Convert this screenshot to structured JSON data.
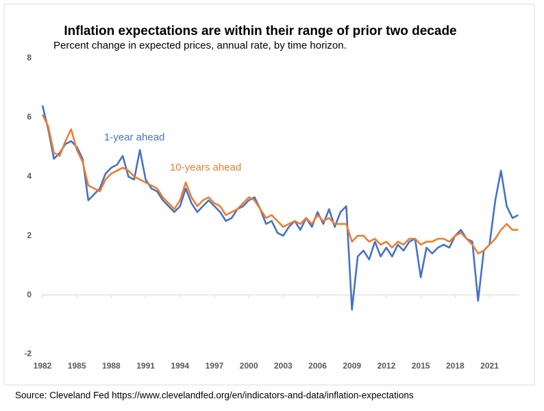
{
  "chart_data": {
    "type": "line",
    "title": "Inflation expectations are within their range of prior two decade",
    "subtitle": "Percent change in expected prices, annual rate, by time horizon.",
    "source": "Source: Cleveland Fed https://www.clevelandfed.org/en/indicators-and-data/inflation-expectations",
    "x": [
      1982,
      1982.5,
      1983,
      1983.5,
      1984,
      1984.5,
      1985,
      1985.5,
      1986,
      1986.5,
      1987,
      1987.5,
      1988,
      1988.5,
      1989,
      1989.5,
      1990,
      1990.5,
      1991,
      1991.5,
      1992,
      1992.5,
      1993,
      1993.5,
      1994,
      1994.5,
      1995,
      1995.5,
      1996,
      1996.5,
      1997,
      1997.5,
      1998,
      1998.5,
      1999,
      1999.5,
      2000,
      2000.5,
      2001,
      2001.5,
      2002,
      2002.5,
      2003,
      2003.5,
      2004,
      2004.5,
      2005,
      2005.5,
      2006,
      2006.5,
      2007,
      2007.5,
      2008,
      2008.5,
      2009,
      2009.5,
      2010,
      2010.5,
      2011,
      2011.5,
      2012,
      2012.5,
      2013,
      2013.5,
      2014,
      2014.5,
      2015,
      2015.5,
      2016,
      2016.5,
      2017,
      2017.5,
      2018,
      2018.5,
      2019,
      2019.5,
      2020,
      2020.5,
      2021,
      2021.5,
      2022,
      2022.5,
      2023,
      2023.5
    ],
    "series": [
      {
        "name": "1-year ahead",
        "color": "#4472c4",
        "values": [
          6.4,
          5.6,
          4.6,
          4.8,
          5.1,
          5.2,
          5.0,
          4.6,
          3.2,
          3.4,
          3.6,
          4.1,
          4.3,
          4.4,
          4.7,
          4.0,
          3.9,
          4.9,
          3.9,
          3.6,
          3.5,
          3.2,
          3.0,
          2.8,
          3.0,
          3.6,
          3.1,
          2.8,
          3.0,
          3.2,
          3.0,
          2.8,
          2.5,
          2.6,
          2.9,
          3.0,
          3.2,
          3.3,
          2.9,
          2.4,
          2.5,
          2.1,
          2.0,
          2.3,
          2.5,
          2.2,
          2.6,
          2.3,
          2.8,
          2.4,
          2.9,
          2.3,
          2.8,
          3.0,
          -0.5,
          1.3,
          1.5,
          1.2,
          1.8,
          1.3,
          1.6,
          1.3,
          1.7,
          1.5,
          1.8,
          1.9,
          0.6,
          1.6,
          1.4,
          1.6,
          1.7,
          1.6,
          2.0,
          2.2,
          1.9,
          1.8,
          -0.2,
          1.5,
          1.7,
          3.2,
          4.2,
          3.0,
          2.6,
          2.7
        ]
      },
      {
        "name": "10-years ahead",
        "color": "#ed7d31",
        "values": [
          6.1,
          5.7,
          4.8,
          4.7,
          5.2,
          5.6,
          4.9,
          4.5,
          3.7,
          3.6,
          3.5,
          3.9,
          4.1,
          4.2,
          4.3,
          4.2,
          4.0,
          3.9,
          3.8,
          3.7,
          3.6,
          3.3,
          3.1,
          2.9,
          3.2,
          3.8,
          3.3,
          3.0,
          3.2,
          3.3,
          3.1,
          3.0,
          2.7,
          2.8,
          2.9,
          3.1,
          3.3,
          3.2,
          2.9,
          2.6,
          2.7,
          2.5,
          2.3,
          2.4,
          2.5,
          2.4,
          2.6,
          2.4,
          2.7,
          2.5,
          2.6,
          2.4,
          2.4,
          2.4,
          1.8,
          2.0,
          2.0,
          1.8,
          1.9,
          1.7,
          1.8,
          1.6,
          1.8,
          1.7,
          1.9,
          1.9,
          1.7,
          1.8,
          1.8,
          1.9,
          1.9,
          1.8,
          2.0,
          2.1,
          1.9,
          1.7,
          1.4,
          1.5,
          1.7,
          1.9,
          2.2,
          2.4,
          2.2,
          2.2
        ]
      }
    ],
    "xlim": [
      1982,
      2023.6
    ],
    "xticks": [
      1982,
      1985,
      1988,
      1991,
      1994,
      1997,
      2000,
      2003,
      2006,
      2009,
      2012,
      2015,
      2018,
      2021
    ],
    "ylim": [
      -2,
      8
    ],
    "yticks": [
      8,
      6,
      4,
      2,
      0,
      -2
    ],
    "grid": false
  }
}
